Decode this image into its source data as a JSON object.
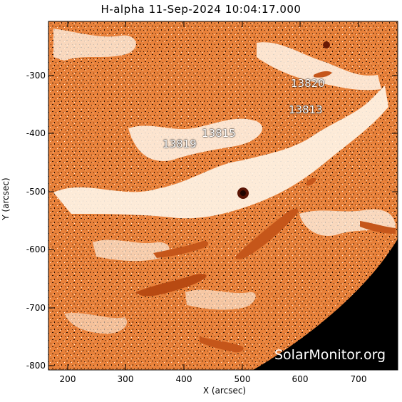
{
  "title": "H-alpha 11-Sep-2024 10:04:17.000",
  "axes": {
    "xlabel": "X (arcsec)",
    "ylabel": "Y (arcsec)",
    "xticks": [
      "200",
      "300",
      "400",
      "500",
      "600",
      "700"
    ],
    "yticks": [
      "-300",
      "-400",
      "-500",
      "-600",
      "-700",
      "-800"
    ]
  },
  "regions": [
    "13820",
    "13813",
    "13815",
    "13819"
  ],
  "watermark": "SolarMonitor.org",
  "colors": {
    "chromosphere": "#f08a3c",
    "plage": "#fff6ea",
    "filament": "#b84a12",
    "space": "#000000"
  }
}
